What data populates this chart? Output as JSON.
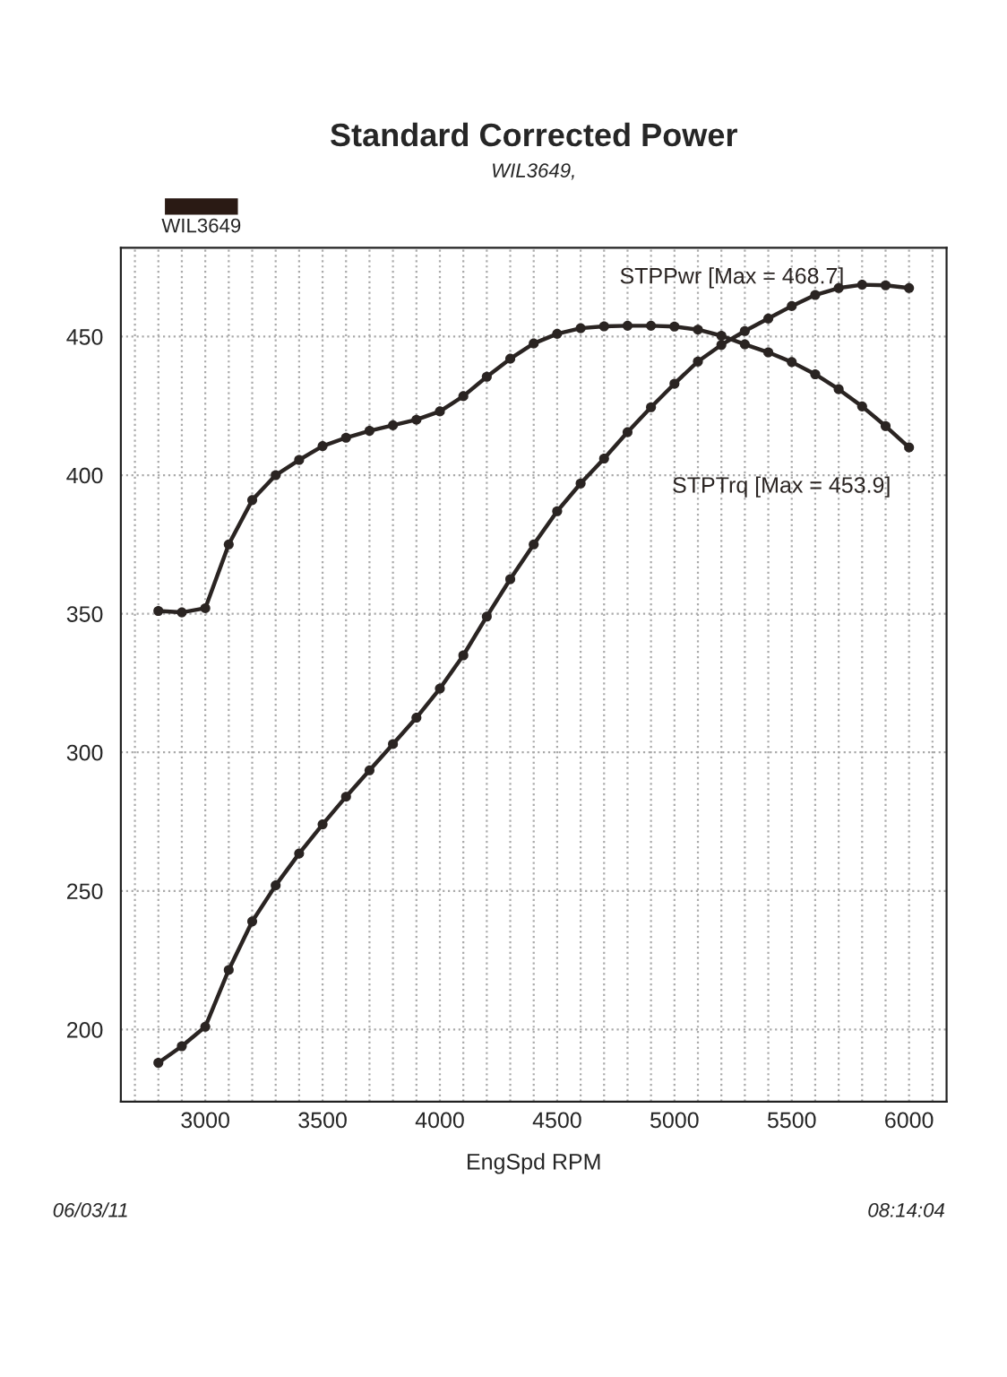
{
  "chart_data": {
    "type": "line",
    "title": "Standard Corrected Power",
    "subtitle": "WIL3649,",
    "xlabel": "EngSpd RPM",
    "annotations": [
      "WIL3649",
      "06/03/11",
      "08:14:04"
    ],
    "x": [
      2800,
      2900,
      3000,
      3100,
      3200,
      3300,
      3400,
      3500,
      3600,
      3700,
      3800,
      3900,
      4000,
      4100,
      4200,
      4300,
      4400,
      4500,
      4600,
      4700,
      4800,
      4900,
      5000,
      5100,
      5200,
      5300,
      5400,
      5500,
      5600,
      5700,
      5800,
      5900,
      6000
    ],
    "series": [
      {
        "name": "STPPwr [Max = 468.7]",
        "color": "#2a2422",
        "values": [
          188,
          194,
          201,
          221.5,
          239,
          252,
          263.5,
          274,
          284,
          293.5,
          303,
          312.5,
          323,
          335,
          349,
          362.5,
          375,
          387,
          397,
          406,
          415.5,
          424.5,
          433,
          441,
          447,
          452,
          456.5,
          461,
          465,
          467.5,
          468.7,
          468.5,
          467.5
        ]
      },
      {
        "name": "STPTrq [Max = 453.9]",
        "color": "#2a2422",
        "values": [
          351,
          350.5,
          352,
          375,
          391,
          400,
          405.5,
          410.5,
          413.5,
          416,
          418,
          420,
          423,
          428.5,
          435.5,
          442,
          447.5,
          451,
          453,
          453.7,
          453.9,
          453.9,
          453.6,
          452.5,
          450.3,
          447.2,
          444.3,
          440.8,
          436.4,
          431,
          424.8,
          417.7,
          410
        ]
      }
    ],
    "xlim": [
      2640,
      6160
    ],
    "xticks": [
      {
        "value": 2700,
        "label": null
      },
      {
        "value": 2800,
        "label": null
      },
      {
        "value": 2900,
        "label": null
      },
      3000,
      {
        "value": 3100,
        "label": null
      },
      {
        "value": 3200,
        "label": null
      },
      {
        "value": 3300,
        "label": null
      },
      {
        "value": 3400,
        "label": null
      },
      3500,
      {
        "value": 3600,
        "label": null
      },
      {
        "value": 3700,
        "label": null
      },
      {
        "value": 3800,
        "label": null
      },
      {
        "value": 3900,
        "label": null
      },
      4000,
      {
        "value": 4100,
        "label": null
      },
      {
        "value": 4200,
        "label": null
      },
      {
        "value": 4300,
        "label": null
      },
      {
        "value": 4400,
        "label": null
      },
      4500,
      {
        "value": 4600,
        "label": null
      },
      {
        "value": 4700,
        "label": null
      },
      {
        "value": 4800,
        "label": null
      },
      {
        "value": 4900,
        "label": null
      },
      5000,
      {
        "value": 5100,
        "label": null
      },
      {
        "value": 5200,
        "label": null
      },
      {
        "value": 5300,
        "label": null
      },
      {
        "value": 5400,
        "label": null
      },
      5500,
      {
        "value": 5600,
        "label": null
      },
      {
        "value": 5700,
        "label": null
      },
      {
        "value": 5800,
        "label": null
      },
      {
        "value": 5900,
        "label": null
      },
      6000,
      {
        "value": 6100,
        "label": null
      }
    ],
    "ylim": [
      174,
      482
    ],
    "yticks": [
      200,
      250,
      300,
      350,
      400,
      450
    ],
    "grid": true,
    "marker": "circle",
    "line_style": "solid",
    "legend": false
  }
}
